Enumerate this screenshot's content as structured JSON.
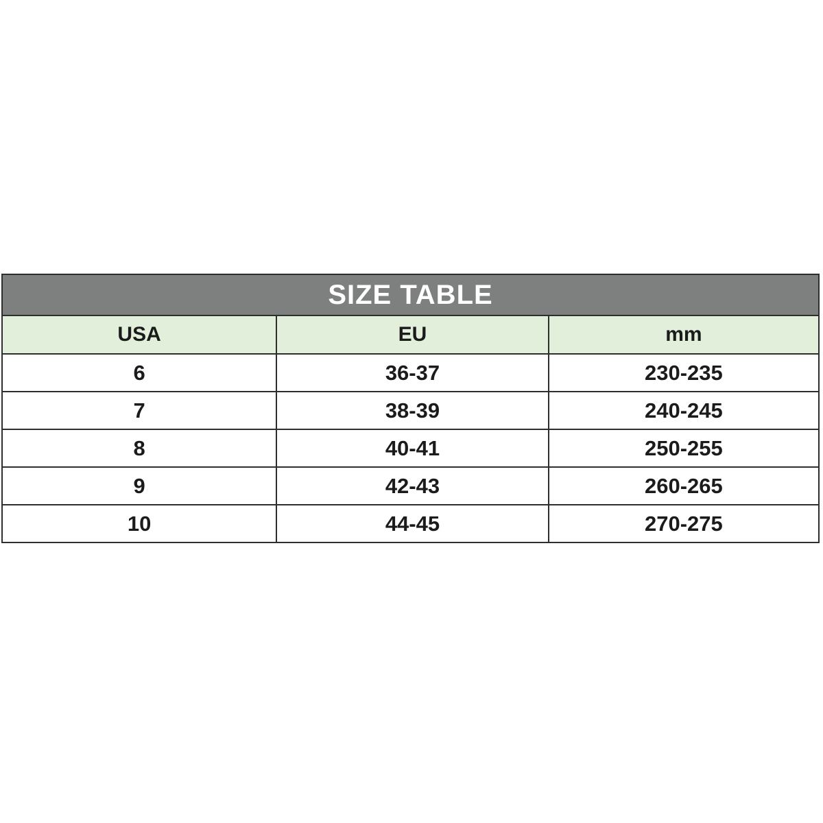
{
  "page": {
    "background": "#ffffff"
  },
  "colors": {
    "title_bar_bg": "#7e7f7f",
    "title_text": "#ffffff",
    "header_row_bg": "#e2efda",
    "cell_bg": "#ffffff",
    "border": "#2e2e2e",
    "cell_text": "#1b1b1b"
  },
  "chart_data": {
    "type": "table",
    "title": "SIZE TABLE",
    "columns": [
      "USA",
      "EU",
      "mm"
    ],
    "rows": [
      [
        "6",
        "36-37",
        "230-235"
      ],
      [
        "7",
        "38-39",
        "240-245"
      ],
      [
        "8",
        "40-41",
        "250-255"
      ],
      [
        "9",
        "42-43",
        "260-265"
      ],
      [
        "10",
        "44-45",
        "270-275"
      ]
    ],
    "layout": {
      "title_position": "top-banner-spanning-all-columns",
      "grid": "on",
      "text_align": "center"
    }
  }
}
